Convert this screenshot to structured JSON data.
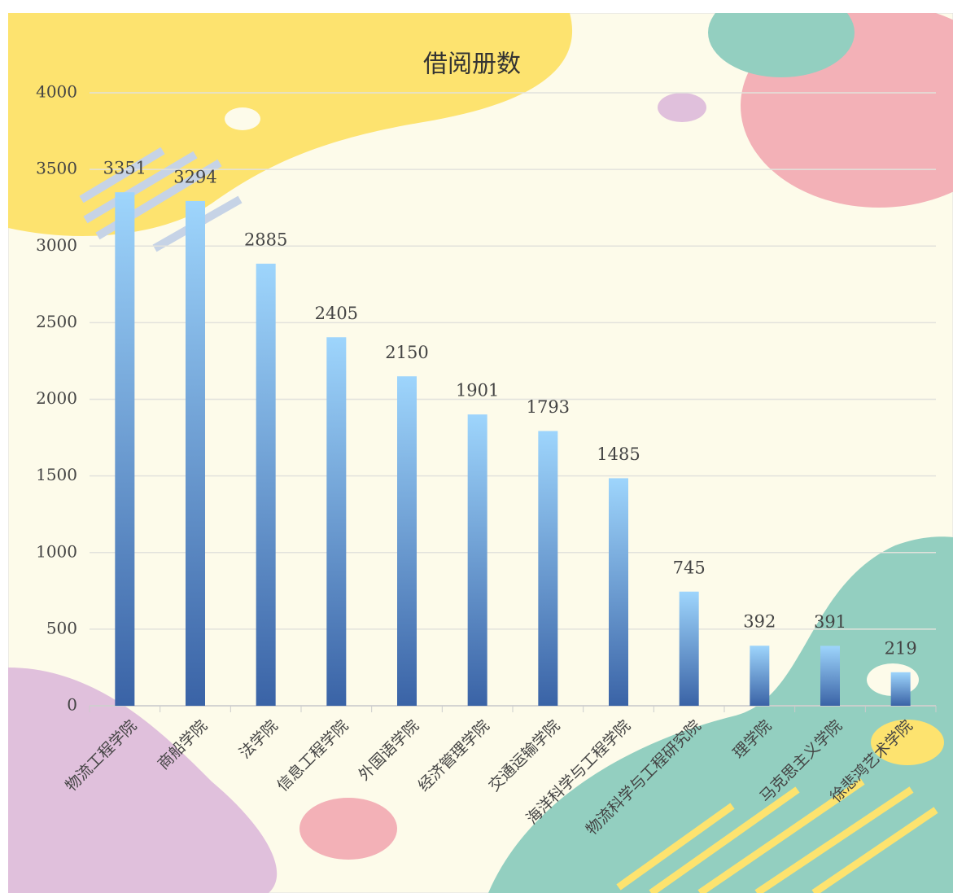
{
  "chart_data": {
    "type": "bar",
    "title": "借阅册数",
    "categories": [
      "物流工程学院",
      "商船学院",
      "法学院",
      "信息工程学院",
      "外国语学院",
      "经济管理学院",
      "交通运输学院",
      "海洋科学与工程学院",
      "物流科学与工程研究院",
      "理学院",
      "马克思主义学院",
      "徐悲鸿艺术学院"
    ],
    "values": [
      3351,
      3294,
      2885,
      2405,
      2150,
      1901,
      1793,
      1485,
      745,
      392,
      391,
      219
    ],
    "gradient": [
      "#9ed5fc",
      "#3a63a6"
    ],
    "ylim": [
      0,
      4000
    ],
    "yticks": [
      0,
      500,
      1000,
      1500,
      2000,
      2500,
      3000,
      3500,
      4000
    ],
    "grid": true
  }
}
